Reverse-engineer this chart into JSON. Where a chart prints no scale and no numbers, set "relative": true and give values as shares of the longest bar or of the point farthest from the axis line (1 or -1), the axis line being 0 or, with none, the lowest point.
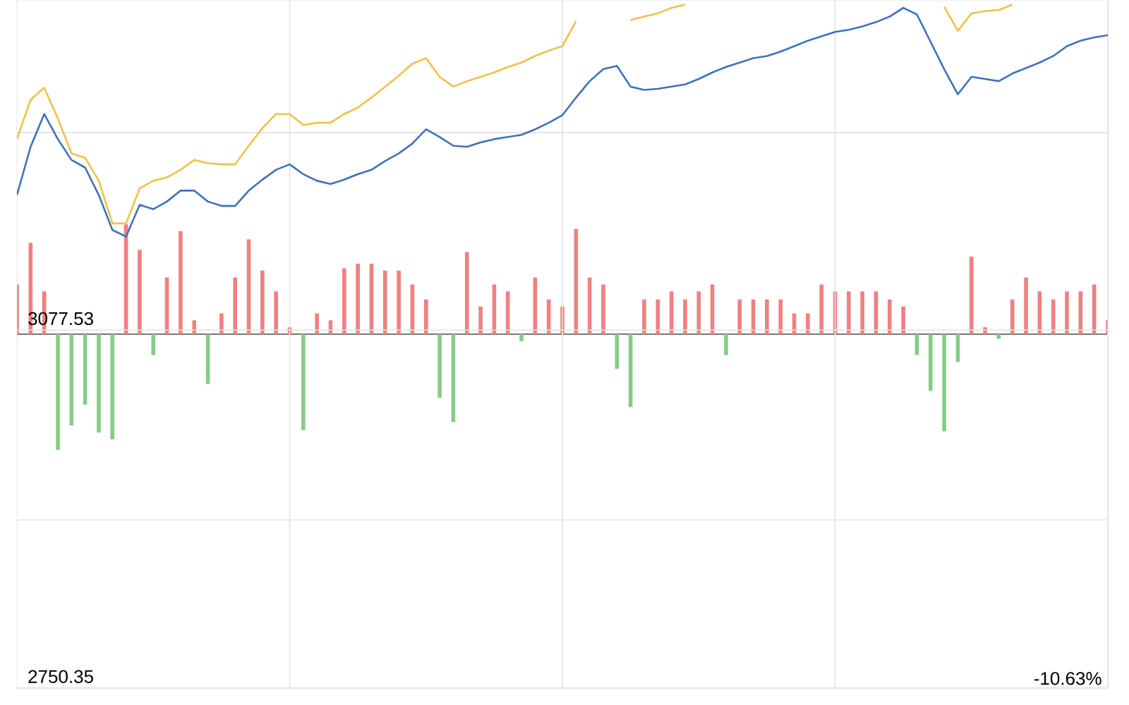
{
  "chart_data": [
    {
      "type": "line",
      "categories": [
        null,
        null,
        null,
        null,
        null,
        null,
        null,
        null,
        null,
        null,
        null,
        null,
        null,
        null,
        null,
        null,
        null,
        null,
        null,
        null,
        null,
        null,
        null,
        null,
        null,
        null,
        null,
        null,
        null,
        null,
        null,
        null,
        null,
        null,
        null,
        null,
        null,
        null,
        null,
        null,
        null,
        null,
        null,
        null,
        null,
        null,
        null,
        null,
        null,
        null,
        null,
        null,
        null,
        null,
        null,
        null,
        null,
        null,
        null,
        null,
        null,
        null,
        null,
        null,
        null,
        null,
        null,
        null,
        null,
        null,
        null,
        null,
        null,
        null,
        null,
        null,
        null,
        null,
        null,
        null,
        null
      ],
      "series": [
        {
          "color": "#3f72b8",
          "values": [
            3201,
            3245,
            3275,
            3252,
            3233,
            3226,
            3201,
            3169,
            3163,
            3192,
            3188,
            3195,
            3205,
            3205,
            3195,
            3191,
            3191,
            3205,
            3215,
            3224,
            3229,
            3220,
            3214,
            3211,
            3215,
            3220,
            3224,
            3232,
            3239,
            3248,
            3261,
            3254,
            3246,
            3245,
            3249,
            3252,
            3254,
            3256,
            3261,
            3267,
            3274,
            3290,
            3305,
            3316,
            3319,
            3300,
            3297,
            3298,
            3300,
            3302,
            3307,
            3313,
            3318,
            3322,
            3326,
            3328,
            3332,
            3337,
            3342,
            3346,
            3350,
            3352,
            3355,
            3359,
            3364,
            3372,
            3366,
            3341,
            3316,
            3293,
            3309,
            3307,
            3305,
            3312,
            3317,
            3322,
            3328,
            3337,
            3342,
            3345,
            3347
          ]
        },
        {
          "color": "#f0c24a",
          "values": [
            3252,
            3288,
            3299,
            3271,
            3239,
            3235,
            3214,
            3175,
            3175,
            3207,
            3214,
            3217,
            3224,
            3233,
            3230,
            3229,
            3229,
            3246,
            3262,
            3275,
            3275,
            3265,
            3267,
            3267,
            3275,
            3281,
            3290,
            3300,
            3310,
            3321,
            3326,
            3309,
            3300,
            3305,
            3309,
            3313,
            3318,
            3322,
            3328,
            3333,
            3337,
            3360,
            null,
            null,
            null,
            3361,
            3364,
            3367,
            3372,
            3375,
            null,
            null,
            null,
            null,
            null,
            null,
            null,
            null,
            null,
            null,
            null,
            null,
            null,
            null,
            null,
            null,
            null,
            null,
            3373,
            3351,
            3367,
            3369,
            3370,
            3375,
            null,
            null,
            null,
            null,
            null,
            null,
            null
          ]
        }
      ],
      "ylim": [
        2750.35,
        3379.2
      ],
      "yticks": [
        2750.35,
        {
          "value": 2904,
          "label": null
        },
        3077.53,
        {
          "value": 3258,
          "label": null
        }
      ],
      "annotations": [
        "-10.63%"
      ],
      "grid": true
    },
    {
      "type": "bar",
      "relative": true,
      "categories": [
        null,
        null,
        null,
        null,
        null,
        null,
        null,
        null,
        null,
        null,
        null,
        null,
        null,
        null,
        null,
        null,
        null,
        null,
        null,
        null,
        null,
        null,
        null,
        null,
        null,
        null,
        null,
        null,
        null,
        null,
        null,
        null,
        null,
        null,
        null,
        null,
        null,
        null,
        null,
        null,
        null,
        null,
        null,
        null,
        null,
        null,
        null,
        null,
        null,
        null,
        null,
        null,
        null,
        null,
        null,
        null,
        null,
        null,
        null,
        null,
        null,
        null,
        null,
        null,
        null,
        null,
        null,
        null,
        null,
        null,
        null,
        null,
        null,
        null,
        null,
        null,
        null,
        null,
        null,
        null,
        null
      ],
      "values": [
        0.43,
        0.79,
        0.37,
        -1,
        -0.79,
        -0.61,
        -0.85,
        -0.91,
        0.95,
        0.73,
        -0.18,
        0.49,
        0.89,
        0.12,
        -0.43,
        0.18,
        0.49,
        0.82,
        0.55,
        0.37,
        0.06,
        -0.83,
        0.18,
        0.12,
        0.57,
        0.61,
        0.61,
        0.55,
        0.55,
        0.43,
        0.3,
        -0.55,
        -0.76,
        0.71,
        0.24,
        0.43,
        0.37,
        -0.06,
        0.49,
        0.3,
        0.24,
        0.91,
        0.49,
        0.43,
        -0.3,
        -0.63,
        0.3,
        0.3,
        0.37,
        0.3,
        0.37,
        0.43,
        -0.18,
        0.3,
        0.3,
        0.3,
        0.3,
        0.18,
        0.18,
        0.43,
        0.37,
        0.37,
        0.37,
        0.37,
        0.3,
        0.24,
        -0.18,
        -0.49,
        -0.84,
        -0.24,
        0.67,
        0.06,
        -0.04,
        0.3,
        0.49,
        0.37,
        0.3,
        0.37,
        0.37,
        0.43,
        0.12
      ],
      "colors": [
        "#f08080",
        "#f08080",
        "#f08080",
        "#86cc86",
        "#86cc86",
        "#86cc86",
        "#86cc86",
        "#86cc86",
        "#f08080",
        "#f08080",
        "#86cc86",
        "#f08080",
        "#f08080",
        "#f08080",
        "#86cc86",
        "#f08080",
        "#f08080",
        "#f08080",
        "#f08080",
        "#f08080",
        "#f08080",
        "#86cc86",
        "#f08080",
        "#f08080",
        "#f08080",
        "#f08080",
        "#f08080",
        "#f08080",
        "#f08080",
        "#f08080",
        "#f08080",
        "#86cc86",
        "#86cc86",
        "#f08080",
        "#f08080",
        "#f08080",
        "#f08080",
        "#86cc86",
        "#f08080",
        "#f08080",
        "#f08080",
        "#f08080",
        "#f08080",
        "#f08080",
        "#86cc86",
        "#86cc86",
        "#f08080",
        "#f08080",
        "#f08080",
        "#f08080",
        "#f08080",
        "#f08080",
        "#86cc86",
        "#f08080",
        "#f08080",
        "#f08080",
        "#f08080",
        "#f08080",
        "#f08080",
        "#f08080",
        "#f08080",
        "#f08080",
        "#f08080",
        "#f08080",
        "#f08080",
        "#f08080",
        "#86cc86",
        "#86cc86",
        "#86cc86",
        "#86cc86",
        "#f08080",
        "#f08080",
        "#86cc86",
        "#f08080",
        "#f08080",
        "#f08080",
        "#f08080",
        "#f08080",
        "#f08080",
        "#f08080",
        "#f08080"
      ]
    }
  ]
}
